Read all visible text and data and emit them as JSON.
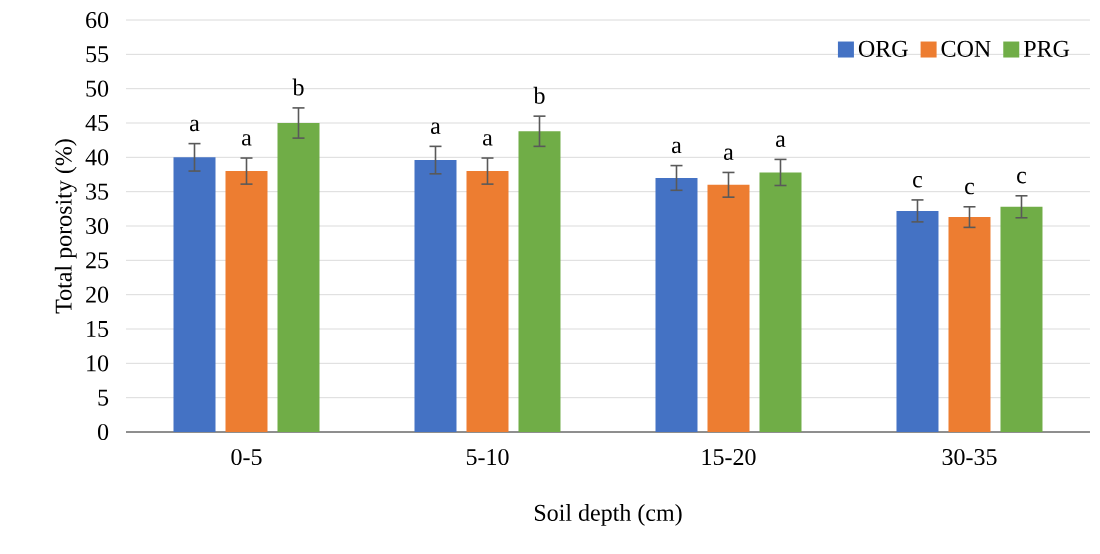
{
  "chart_data": {
    "type": "bar",
    "xlabel": "Soil depth (cm)",
    "ylabel": "Total porosity (%)",
    "categories": [
      "0-5",
      "5-10",
      "15-20",
      "30-35"
    ],
    "series": [
      {
        "name": "ORG",
        "color": "#4472c4",
        "values": [
          40,
          39.6,
          37,
          32.2
        ],
        "errors": [
          2,
          2,
          1.8,
          1.6
        ]
      },
      {
        "name": "CON",
        "color": "#ed7d31",
        "values": [
          38,
          38,
          36,
          31.3
        ],
        "errors": [
          1.9,
          1.9,
          1.8,
          1.5
        ]
      },
      {
        "name": "PRG",
        "color": "#70ad47",
        "values": [
          45,
          43.8,
          37.8,
          32.8
        ],
        "errors": [
          2.2,
          2.2,
          1.9,
          1.6
        ]
      }
    ],
    "annotations": [
      "a",
      "a",
      "b",
      "a",
      "a",
      "b",
      "a",
      "a",
      "a",
      "c",
      "c",
      "c"
    ],
    "ylim": [
      0,
      60
    ],
    "yticks": [
      0,
      5,
      10,
      15,
      20,
      25,
      30,
      35,
      40,
      45,
      50,
      55,
      60
    ],
    "grid": "y",
    "legend": "top right"
  }
}
